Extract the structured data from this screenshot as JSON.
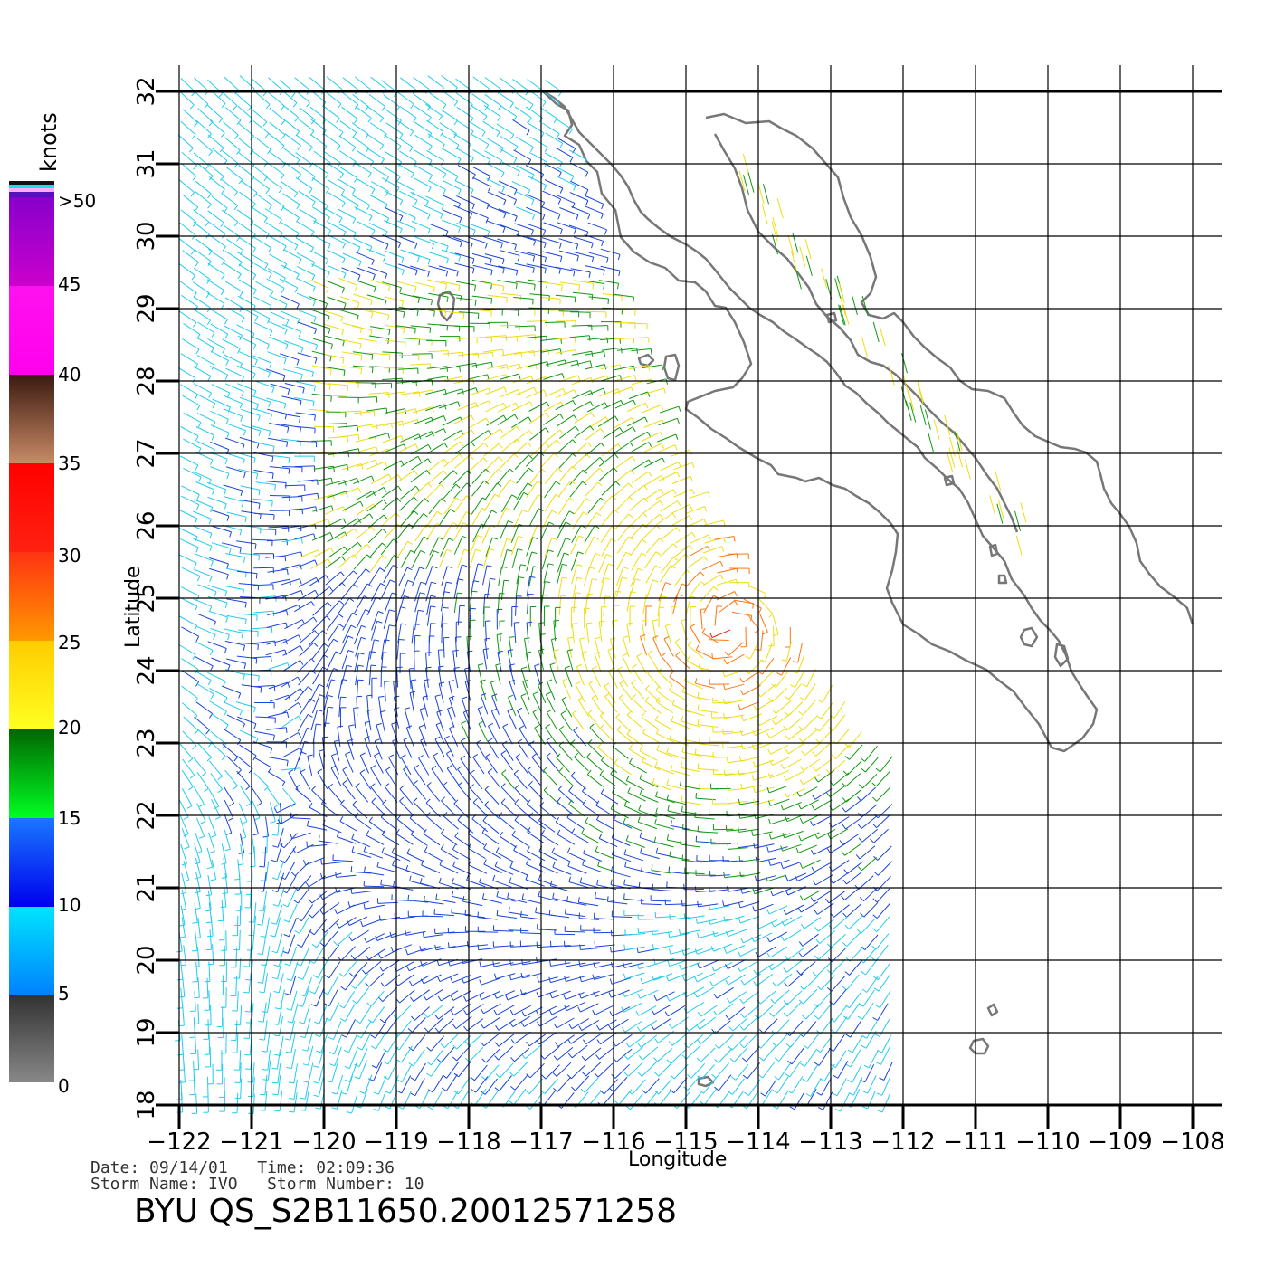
{
  "legend": {
    "unit": "knots",
    "labels": [
      ">50",
      "45",
      "40",
      "35",
      "30",
      "25",
      "20",
      "15",
      "10",
      "5",
      "0"
    ]
  },
  "axes": {
    "xlabel": "Longitude",
    "ylabel": "Latitude",
    "lon_ticks": [
      "−122",
      "−121",
      "−120",
      "−119",
      "−118",
      "−117",
      "−116",
      "−115",
      "−114",
      "−113",
      "−112",
      "−111",
      "−110",
      "−109",
      "−108"
    ],
    "lat_ticks": [
      "18",
      "19",
      "20",
      "21",
      "22",
      "23",
      "24",
      "25",
      "26",
      "27",
      "28",
      "29",
      "30",
      "31",
      "32"
    ]
  },
  "meta": {
    "line1": "Date: 09/14/01   Time: 02:09:36",
    "line2": "Storm Name: IVO   Storm Number: 10",
    "title": "BYU QS_S2B11650.20012571258"
  },
  "map": {
    "lon_range": [
      -122,
      -108
    ],
    "lat_range": [
      18,
      32
    ],
    "storm_center": {
      "lon": -114.4,
      "lat": 24.6
    },
    "land_color": "#777777",
    "grid_color": "#000000"
  },
  "speed_colors": [
    {
      "max": 5,
      "color": "#333333"
    },
    {
      "max": 10,
      "color": "#22ccee"
    },
    {
      "max": 15,
      "color": "#1a44dd"
    },
    {
      "max": 20,
      "color": "#119911"
    },
    {
      "max": 25,
      "color": "#eedd11"
    },
    {
      "max": 30,
      "color": "#ff7711"
    },
    {
      "max": 35,
      "color": "#ee2211"
    }
  ]
}
